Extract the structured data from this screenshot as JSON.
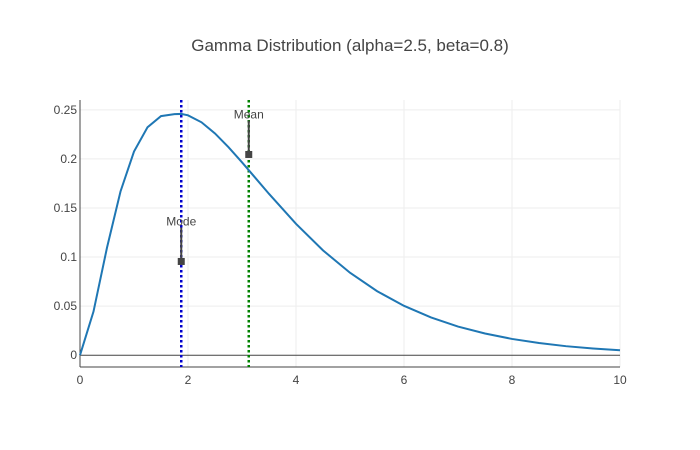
{
  "chart_data": {
    "type": "line",
    "title": "Gamma Distribution (alpha=2.5, beta=0.8)",
    "xlabel": "",
    "ylabel": "",
    "xlim": [
      0,
      10
    ],
    "ylim": [
      -0.012,
      0.26
    ],
    "grid": true,
    "x_ticks": [
      0,
      2,
      4,
      6,
      8,
      10
    ],
    "x_tick_labels": [
      "0",
      "2",
      "4",
      "6",
      "8",
      "10"
    ],
    "y_ticks": [
      0,
      0.05,
      0.1,
      0.15,
      0.2,
      0.25
    ],
    "y_tick_labels": [
      "0",
      "0.05",
      "0.1",
      "0.15",
      "0.2",
      "0.25"
    ],
    "series": [
      {
        "color": "#1f77b4",
        "x": [
          0,
          0.25,
          0.5,
          0.75,
          1.0,
          1.25,
          1.5,
          1.75,
          1.875,
          2.0,
          2.25,
          2.5,
          2.75,
          3.0,
          3.25,
          3.5,
          4.0,
          4.5,
          5.0,
          5.5,
          6.0,
          6.5,
          7.0,
          7.5,
          8.0,
          8.5,
          9.0,
          9.5,
          10.0
        ],
        "y": [
          0,
          0.0445,
          0.1096,
          0.1668,
          0.2075,
          0.2322,
          0.2436,
          0.2456,
          0.2458,
          0.2444,
          0.2373,
          0.2259,
          0.2119,
          0.1965,
          0.1805,
          0.1644,
          0.1339,
          0.1068,
          0.084,
          0.0653,
          0.0503,
          0.0385,
          0.0292,
          0.0221,
          0.0166,
          0.0124,
          0.0092,
          0.0068,
          0.005
        ]
      }
    ],
    "vlines": [
      {
        "x": 1.875,
        "color": "#0000cc",
        "style": "dotted"
      },
      {
        "x": 3.125,
        "color": "#008000",
        "style": "dotted"
      }
    ],
    "annotations": [
      {
        "text": "Mode",
        "x": 1.875,
        "y": 0.0955
      },
      {
        "text": "Mean",
        "x": 3.125,
        "y": 0.2045
      }
    ],
    "colors": {
      "curve": "#1f77b4",
      "mode_line": "#0000cc",
      "mean_line": "#008000",
      "grid": "#eeeeee",
      "axis": "#444444",
      "annotation": "#444444"
    }
  }
}
